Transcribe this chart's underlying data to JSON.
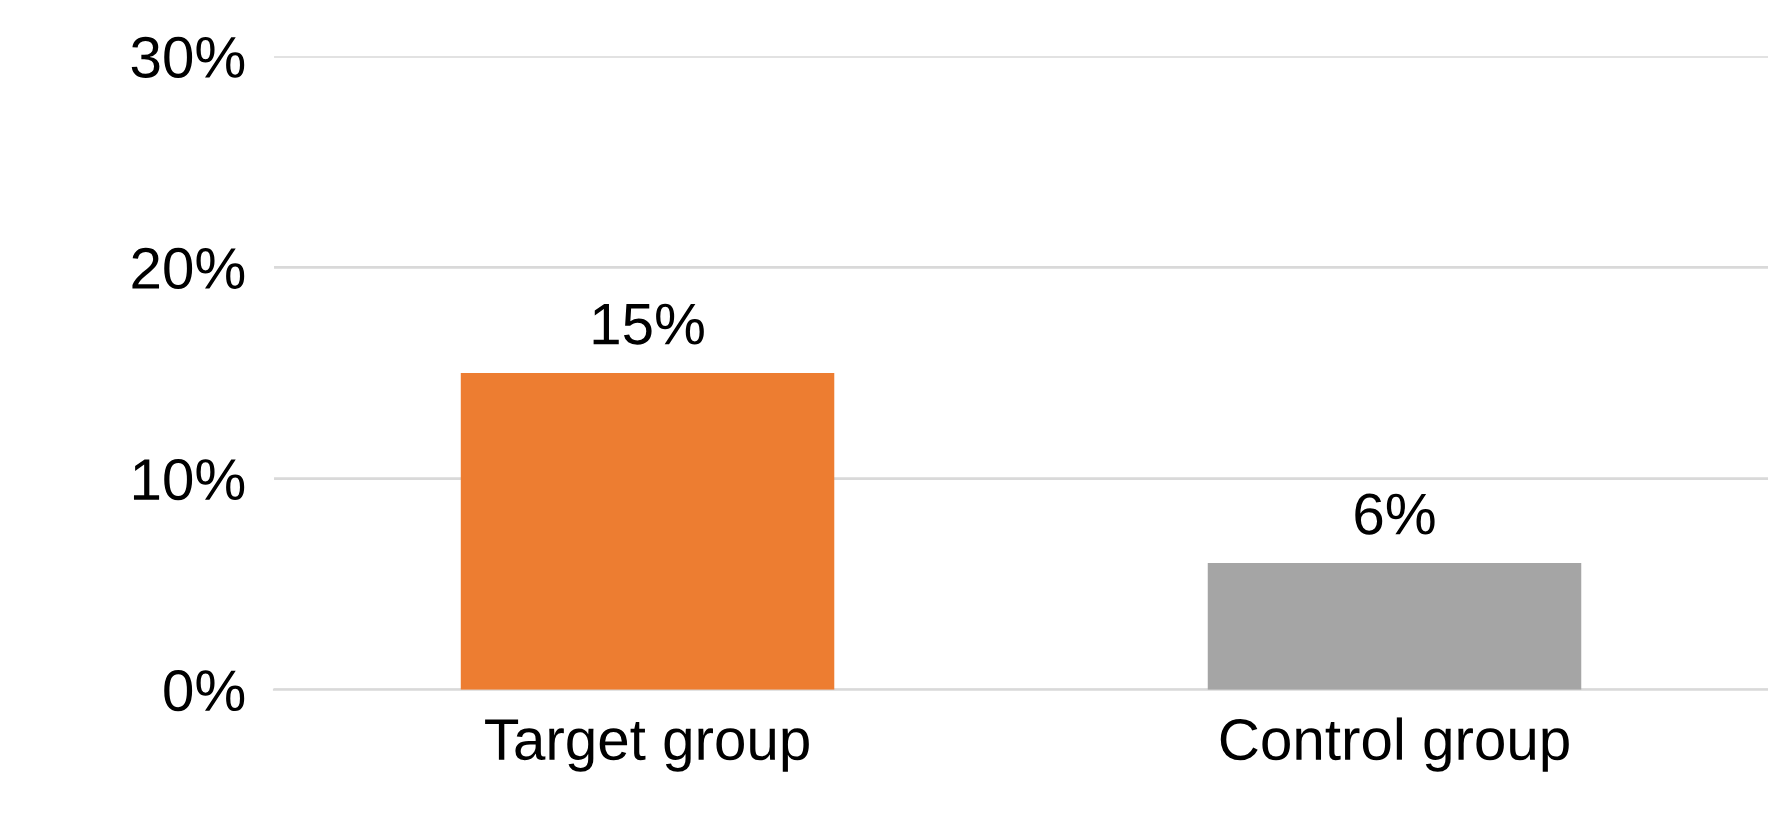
{
  "chart_data": {
    "type": "bar",
    "categories": [
      "Target group",
      "Control group"
    ],
    "values": [
      15,
      6
    ],
    "colors": [
      "#ed7d31",
      "#a5a5a5"
    ],
    "value_labels": [
      "15%",
      "6%"
    ],
    "ylim": [
      0,
      30
    ],
    "yticks": [
      {
        "value": 0,
        "label": "0%"
      },
      {
        "value": 10,
        "label": "10%"
      },
      {
        "value": 20,
        "label": "20%"
      },
      {
        "value": 30,
        "label": "30%"
      }
    ],
    "grid": "y",
    "legend": false
  }
}
